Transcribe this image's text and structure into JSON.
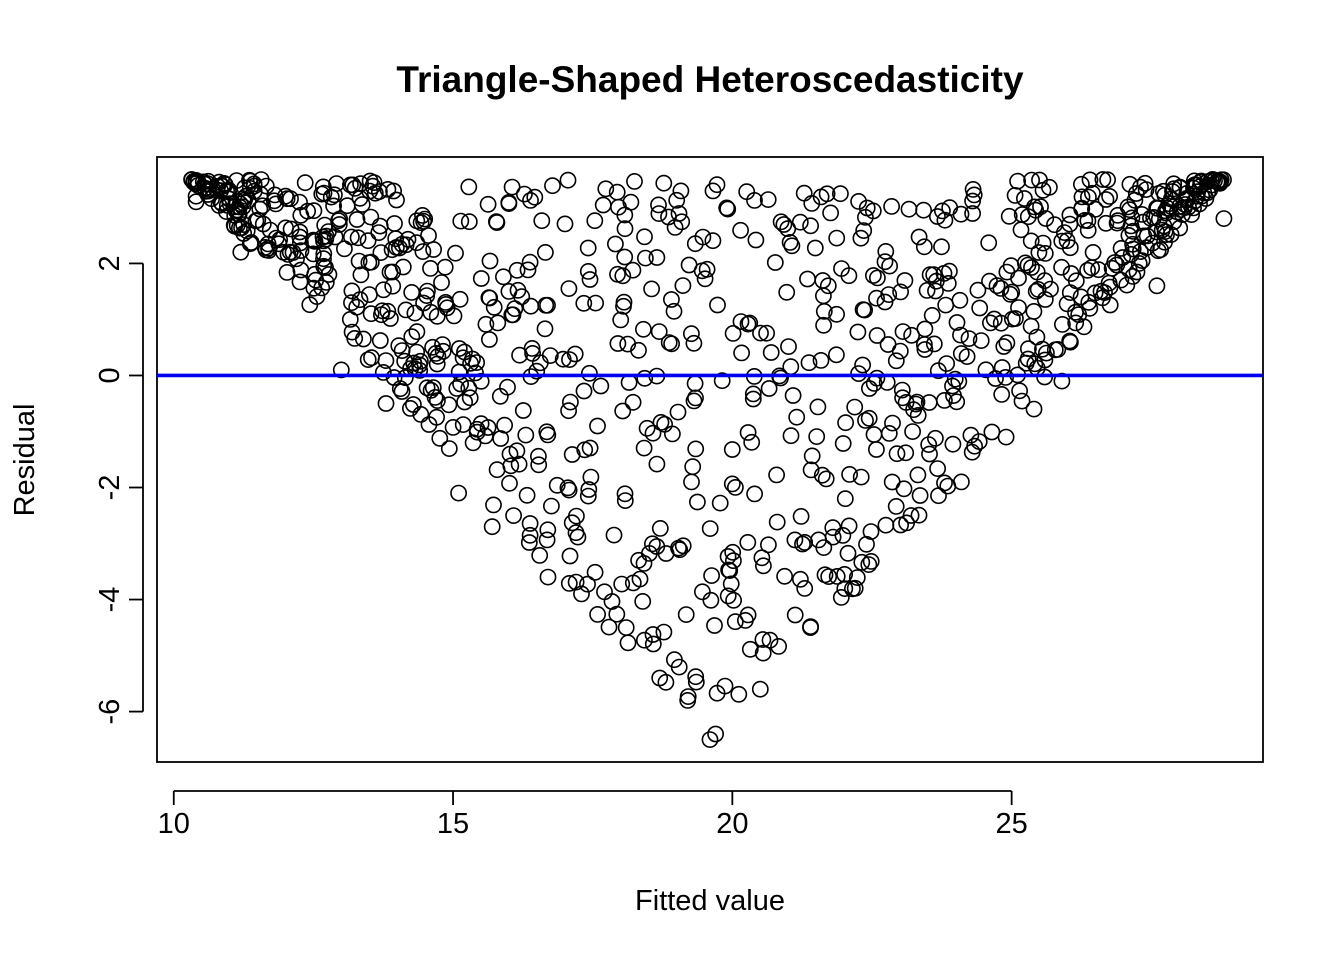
{
  "chart_data": {
    "type": "scatter",
    "title": "Triangle-Shaped Heteroscedasticity",
    "xlabel": "Fitted value",
    "ylabel": "Residual",
    "xlim": [
      9.7,
      29.5
    ],
    "ylim": [
      -6.9,
      3.9
    ],
    "xticks": [
      10,
      15,
      20,
      25
    ],
    "yticks": [
      -6,
      -4,
      -2,
      0,
      2
    ],
    "xtick_labels": [
      "10",
      "15",
      "20",
      "25"
    ],
    "ytick_labels": [
      "-6",
      "-4",
      "-2",
      "0",
      "2"
    ],
    "grid": false,
    "legend": "none",
    "point_shape": "open-circle",
    "point_color": "#000000",
    "reference_line": {
      "y": 0,
      "color": "#0000ee"
    },
    "n_points": 1000,
    "triangle": {
      "upper_bound": 3.5,
      "apex_x": 19.7,
      "apex_y": -6.6,
      "left_x": 10.3,
      "right_x": 28.8
    },
    "sample_points": [
      [
        10.4,
        3.2
      ],
      [
        10.4,
        3.1
      ],
      [
        11.2,
        2.2
      ],
      [
        12.0,
        3.2
      ],
      [
        13.0,
        0.1
      ],
      [
        13.8,
        -0.5
      ],
      [
        15.1,
        -2.1
      ],
      [
        15.7,
        -2.7
      ],
      [
        16.7,
        -3.6
      ],
      [
        17.3,
        -3.9
      ],
      [
        18.1,
        -4.5
      ],
      [
        18.7,
        -5.4
      ],
      [
        19.2,
        -5.8
      ],
      [
        19.6,
        -6.5
      ],
      [
        19.7,
        -6.4
      ],
      [
        20.5,
        -5.6
      ],
      [
        21.4,
        -4.5
      ],
      [
        22.2,
        -3.8
      ],
      [
        23.2,
        -2.5
      ],
      [
        24.1,
        -1.9
      ],
      [
        24.9,
        -1.1
      ],
      [
        25.4,
        -0.6
      ],
      [
        25.9,
        -0.1
      ],
      [
        26.4,
        1.2
      ],
      [
        27.1,
        2.5
      ],
      [
        27.6,
        1.6
      ],
      [
        28.4,
        3.2
      ],
      [
        28.6,
        3.5
      ],
      [
        28.8,
        2.8
      ]
    ]
  }
}
